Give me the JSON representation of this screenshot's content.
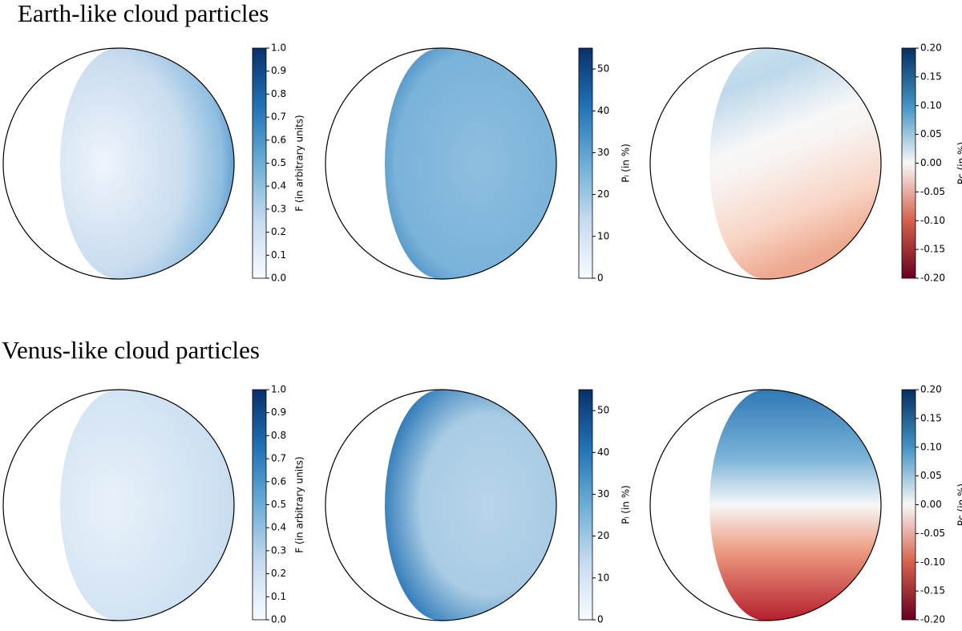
{
  "chart_data": [
    {
      "type": "image",
      "title": "Earth-like cloud particles",
      "colormap": "Blues",
      "clim": [
        0,
        1
      ],
      "cticks": [
        {
          "value": 0,
          "label": "0.0"
        },
        0.1,
        0.2,
        0.3,
        0.4,
        0.5,
        0.6,
        0.7,
        0.8,
        0.9,
        {
          "value": 1,
          "label": "1.0"
        }
      ],
      "colorbar_label": "F (in arbitrary units)"
    },
    {
      "type": "image",
      "colormap": "Blues",
      "clim": [
        0,
        55
      ],
      "cticks": [
        0,
        10,
        20,
        30,
        40,
        50
      ],
      "colorbar_label": "Pₗ (in %)"
    },
    {
      "type": "image",
      "colormap": "RdBu",
      "clim": [
        -0.2,
        0.2
      ],
      "cticks": [
        {
          "value": -0.2,
          "label": "-0.20"
        },
        -0.15,
        {
          "value": -0.1,
          "label": "-0.10"
        },
        -0.05,
        {
          "value": 0,
          "label": "0.00"
        },
        0.05,
        {
          "value": 0.1,
          "label": "0.10"
        },
        0.15,
        {
          "value": 0.2,
          "label": "0.20"
        }
      ],
      "colorbar_label": "Pc (in %)"
    },
    {
      "type": "image",
      "title": "Venus-like cloud particles",
      "colormap": "Blues",
      "clim": [
        0,
        1
      ],
      "cticks": [
        {
          "value": 0,
          "label": "0.0"
        },
        0.1,
        0.2,
        0.3,
        0.4,
        0.5,
        0.6,
        0.7,
        0.8,
        0.9,
        {
          "value": 1,
          "label": "1.0"
        }
      ],
      "colorbar_label": "F (in arbitrary units)"
    },
    {
      "type": "image",
      "colormap": "Blues",
      "clim": [
        0,
        55
      ],
      "cticks": [
        0,
        10,
        20,
        30,
        40,
        50
      ],
      "colorbar_label": "Pₗ (in %)"
    },
    {
      "type": "image",
      "colormap": "RdBu",
      "clim": [
        -0.2,
        0.2
      ],
      "cticks": [
        {
          "value": -0.2,
          "label": "-0.20"
        },
        -0.15,
        {
          "value": -0.1,
          "label": "-0.10"
        },
        -0.05,
        {
          "value": 0,
          "label": "0.00"
        },
        0.05,
        {
          "value": 0.1,
          "label": "0.10"
        },
        0.15,
        {
          "value": 0.2,
          "label": "0.20"
        }
      ],
      "colorbar_label": "Pc (in %)"
    }
  ]
}
